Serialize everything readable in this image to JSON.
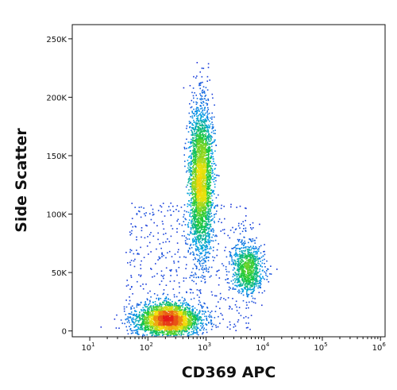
{
  "chart_data": {
    "type": "scatter",
    "style": "flow-cytometry density dot plot (pseudocolor: blue low, green, yellow, red high)",
    "xlabel": "CD369 APC",
    "ylabel": "Side Scatter",
    "x_scale": "log",
    "xlim": [
      5,
      1200000
    ],
    "ylim": [
      -5000,
      262144
    ],
    "x_ticks": [
      {
        "value": 10,
        "base": "10",
        "exp": "1"
      },
      {
        "value": 100,
        "base": "10",
        "exp": "2"
      },
      {
        "value": 1000,
        "base": "10",
        "exp": "3"
      },
      {
        "value": 10000,
        "base": "10",
        "exp": "4"
      },
      {
        "value": 100000,
        "base": "10",
        "exp": "5"
      },
      {
        "value": 1000000,
        "base": "10",
        "exp": "6"
      }
    ],
    "y_ticks": [
      {
        "value": 0,
        "label": "0"
      },
      {
        "value": 50000,
        "label": "50K"
      },
      {
        "value": 100000,
        "label": "100K"
      },
      {
        "value": 150000,
        "label": "150K"
      },
      {
        "value": 200000,
        "label": "200K"
      },
      {
        "value": 250000,
        "label": "250K"
      }
    ],
    "populations": [
      {
        "center_x": 220,
        "center_y": 10000,
        "spread_log10_x": 0.28,
        "spread_y": 7000,
        "events": 2600
      },
      {
        "center_x": 800,
        "center_y": 130000,
        "spread_log10_x": 0.1,
        "spread_y": 32000,
        "events": 3000
      },
      {
        "center_x": 5000,
        "center_y": 53000,
        "spread_log10_x": 0.14,
        "spread_y": 11000,
        "events": 900
      }
    ],
    "colors": {
      "low": "#1f1fd6",
      "mid": "#18c83c",
      "high_mid": "#f2e20a",
      "high": "#e41a1a"
    },
    "grid": false,
    "legend": "none"
  }
}
